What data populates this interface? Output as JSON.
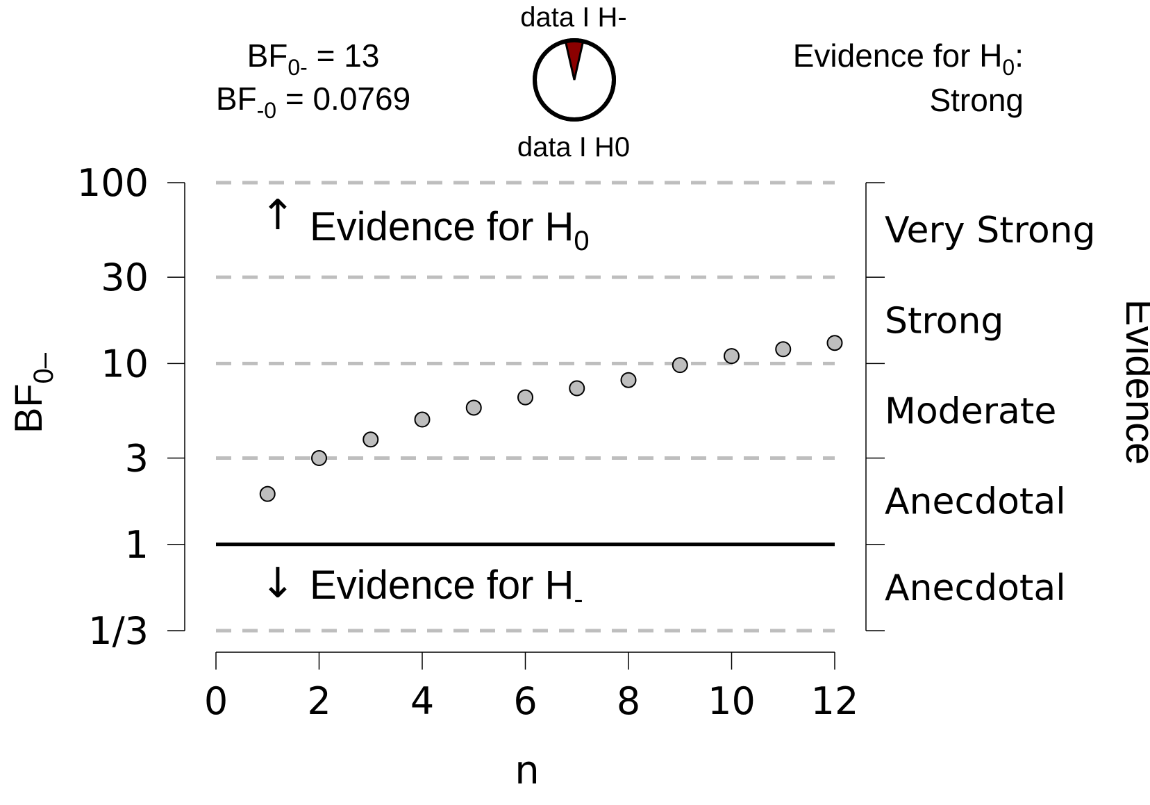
{
  "header": {
    "bf_main_prefix": "BF",
    "bf_main_sub": "0-",
    "bf_main_value": " = 13",
    "bf_inv_prefix": "BF",
    "bf_inv_sub": "-0",
    "bf_inv_value": " = 0.0769",
    "pie_top_label": "data I H-",
    "pie_bottom_label": "data I H0",
    "pie_fraction_red": 0.0714,
    "evidence_prefix": "Evidence for H",
    "evidence_sub": "0",
    "evidence_colon": ":",
    "evidence_level": "Strong"
  },
  "annotations": {
    "up_prefix": "Evidence for H",
    "up_sub": "0",
    "down_prefix": "Evidence for H",
    "down_sub": "-",
    "up_arrow": "↑",
    "down_arrow": "↓"
  },
  "colors": {
    "point_fill": "#bebebe",
    "point_stroke": "#000000",
    "gridline": "#bebebe",
    "pie_red": "#8b0000"
  },
  "chart_data": {
    "type": "scatter",
    "x": [
      1,
      2,
      3,
      4,
      5,
      6,
      7,
      8,
      9,
      10,
      11,
      12
    ],
    "y": [
      1.9,
      3.0,
      3.8,
      4.9,
      5.7,
      6.5,
      7.3,
      8.1,
      9.8,
      11.0,
      12.0,
      13.0
    ],
    "xlabel": "n",
    "ylabel_prefix": "BF",
    "ylabel_sub": "0–",
    "y_scale": "log",
    "ylim": [
      0.3333,
      100
    ],
    "xlim": [
      0,
      12
    ],
    "x_ticks": [
      0,
      2,
      4,
      6,
      8,
      10,
      12
    ],
    "x_tick_labels": [
      "0",
      "2",
      "4",
      "6",
      "8",
      "10",
      "12"
    ],
    "y_ticks": [
      0.3333,
      1,
      3,
      10,
      30,
      100
    ],
    "y_tick_labels": [
      "1/3",
      "1",
      "3",
      "10",
      "30",
      "100"
    ],
    "dashed_gridlines": [
      0.3333,
      3,
      10,
      30,
      100
    ],
    "reference_line": 1,
    "right_axis_title": "Evidence",
    "evidence_bands": [
      {
        "label": "Very Strong",
        "from": 30,
        "to": 100
      },
      {
        "label": "Strong",
        "from": 10,
        "to": 30
      },
      {
        "label": "Moderate",
        "from": 3,
        "to": 10
      },
      {
        "label": "Anecdotal",
        "from": 1,
        "to": 3
      },
      {
        "label": "Anecdotal",
        "from": 0.3333,
        "to": 1
      }
    ]
  }
}
